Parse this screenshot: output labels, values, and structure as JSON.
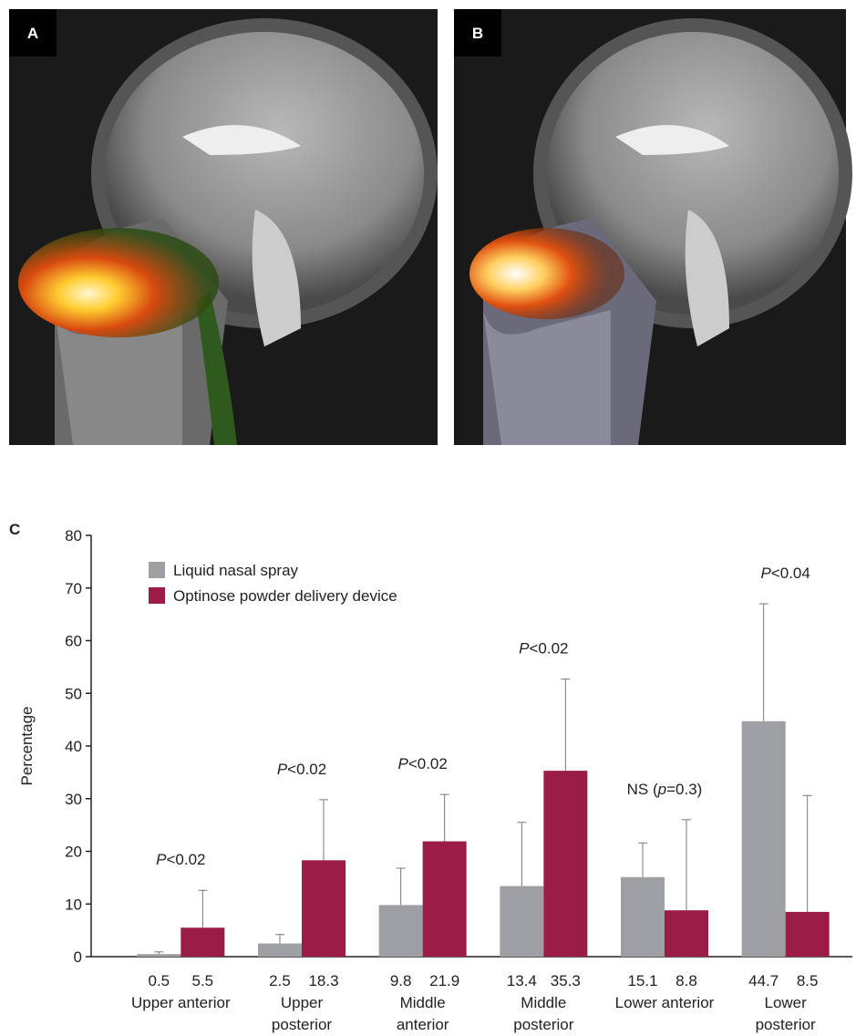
{
  "panel_labels": [
    "A",
    "B",
    "C"
  ],
  "chart_data": {
    "type": "bar",
    "ylabel": "Percentage",
    "categories": [
      "Upper anterior",
      "Upper posterior",
      "Middle anterior",
      "Middle posterior",
      "Lower anterior",
      "Lower posterior"
    ],
    "series": [
      {
        "name": "Liquid nasal spray",
        "color": "#9d9fa2",
        "values": [
          0.5,
          2.5,
          9.8,
          13.4,
          15.1,
          44.7
        ],
        "errors": [
          0.4,
          1.7,
          7.0,
          12.1,
          6.5,
          22.3
        ]
      },
      {
        "name": "Optinose powder delivery device",
        "color": "#9b1c47",
        "values": [
          5.5,
          18.3,
          21.9,
          35.3,
          8.8,
          8.5
        ],
        "errors": [
          7.1,
          11.5,
          8.9,
          17.4,
          17.2,
          22.1
        ]
      }
    ],
    "annotations": [
      {
        "segments": [
          {
            "text": "P",
            "italic": true
          },
          {
            "text": "<0.02"
          }
        ]
      },
      {
        "segments": [
          {
            "text": "P",
            "italic": true
          },
          {
            "text": "<0.02"
          }
        ]
      },
      {
        "segments": [
          {
            "text": "P",
            "italic": true
          },
          {
            "text": "<0.02"
          }
        ]
      },
      {
        "segments": [
          {
            "text": "P",
            "italic": true
          },
          {
            "text": "<0.02"
          }
        ]
      },
      {
        "segments": [
          {
            "text": "NS ("
          },
          {
            "text": "p",
            "italic": true
          },
          {
            "text": "=0.3)"
          }
        ]
      },
      {
        "segments": [
          {
            "text": "P",
            "italic": true
          },
          {
            "text": "<0.04"
          }
        ]
      }
    ],
    "ylim": [
      0,
      80
    ],
    "yticks": [
      0,
      10,
      20,
      30,
      40,
      50,
      60,
      70,
      80
    ],
    "legend": "top-left"
  }
}
